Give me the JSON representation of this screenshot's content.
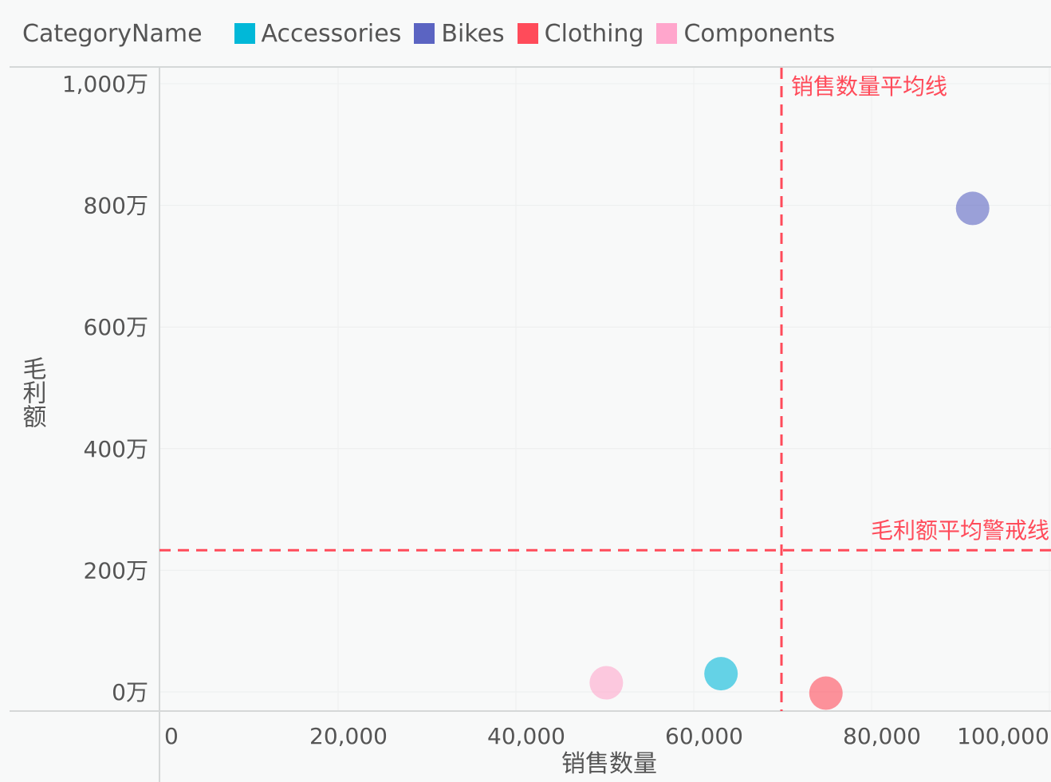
{
  "legend": {
    "title": "CategoryName",
    "items": [
      {
        "name": "Accessories",
        "color": "#01B8D8"
      },
      {
        "name": "Bikes",
        "color": "#5B64C2"
      },
      {
        "name": "Clothing",
        "color": "#FF4B5A"
      },
      {
        "name": "Components",
        "color": "#FFA6CC"
      }
    ]
  },
  "chart_data": {
    "type": "scatter",
    "title": "",
    "xlabel": "销售数量",
    "ylabel": "毛利额",
    "xlim": [
      -1000,
      103000
    ],
    "ylim": [
      -150,
      1020
    ],
    "x_ticks": [
      0,
      20000,
      40000,
      60000,
      80000,
      100000
    ],
    "x_tick_labels": [
      "0",
      "20,000",
      "40,000",
      "60,000",
      "80,000",
      "100,000"
    ],
    "y_ticks": [
      0,
      200,
      400,
      600,
      800,
      1000
    ],
    "y_tick_labels": [
      "0万",
      "200万",
      "400万",
      "600万",
      "800万",
      "1,000万"
    ],
    "y_unit": "万",
    "grid": true,
    "legend_position": "top-left",
    "series": [
      {
        "name": "Accessories",
        "color": "#01B8D8",
        "points": [
          {
            "x": 61900,
            "y": 30
          }
        ]
      },
      {
        "name": "Bikes",
        "color": "#5B64C2",
        "points": [
          {
            "x": 90200,
            "y": 795
          }
        ]
      },
      {
        "name": "Clothing",
        "color": "#FF4B5A",
        "points": [
          {
            "x": 73700,
            "y": -2
          }
        ]
      },
      {
        "name": "Components",
        "color": "#FFA6CC",
        "points": [
          {
            "x": 49000,
            "y": 15
          }
        ]
      }
    ],
    "reference_lines": [
      {
        "label": "销售数量平均线",
        "axis": "x",
        "value": 68700,
        "color": "#FF4B5A"
      },
      {
        "label": "毛利额平均警戒线",
        "axis": "y",
        "value": 233,
        "color": "#FF4B5A"
      }
    ]
  }
}
